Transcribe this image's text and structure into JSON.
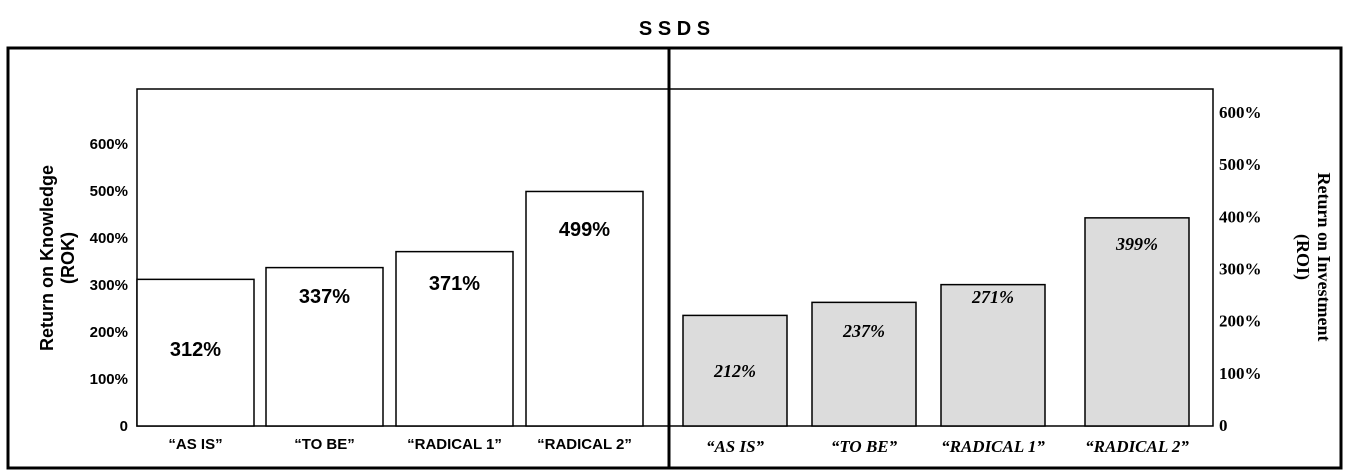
{
  "chart_data": [
    {
      "type": "bar",
      "title": "S S D S",
      "ylabel": "Return on Knowledge\n(ROK)",
      "xlabel": "",
      "categories": [
        "“AS IS”",
        "“TO BE”",
        "“RADICAL 1”",
        "“RADICAL 2”"
      ],
      "values": [
        312,
        337,
        371,
        499
      ],
      "data_labels": [
        "312%",
        "337%",
        "371%",
        "499%"
      ],
      "yticks": [
        "0",
        "100%",
        "200%",
        "300%",
        "400%",
        "500%",
        "600%"
      ],
      "ylim": [
        0,
        700
      ],
      "grid": false,
      "colors": {
        "bar_fill": "#ffffff",
        "bar_stroke": "#000000",
        "text": "#000000"
      }
    },
    {
      "type": "bar",
      "title": "S S D S",
      "ylabel": "Return on Investment\n(ROI)",
      "xlabel": "",
      "categories": [
        "“AS IS”",
        "“TO BE”",
        "“RADICAL 1”",
        "“RADICAL 2”"
      ],
      "values": [
        212,
        237,
        271,
        399
      ],
      "data_labels": [
        "212%",
        "237%",
        "271%",
        "399%"
      ],
      "yticks": [
        "0",
        "100%",
        "200%",
        "300%",
        "400%",
        "500%",
        "600%"
      ],
      "ylim": [
        0,
        650
      ],
      "grid": false,
      "colors": {
        "bar_fill": "#dcdcdc",
        "bar_stroke": "#000000",
        "text": "#000000"
      }
    }
  ]
}
